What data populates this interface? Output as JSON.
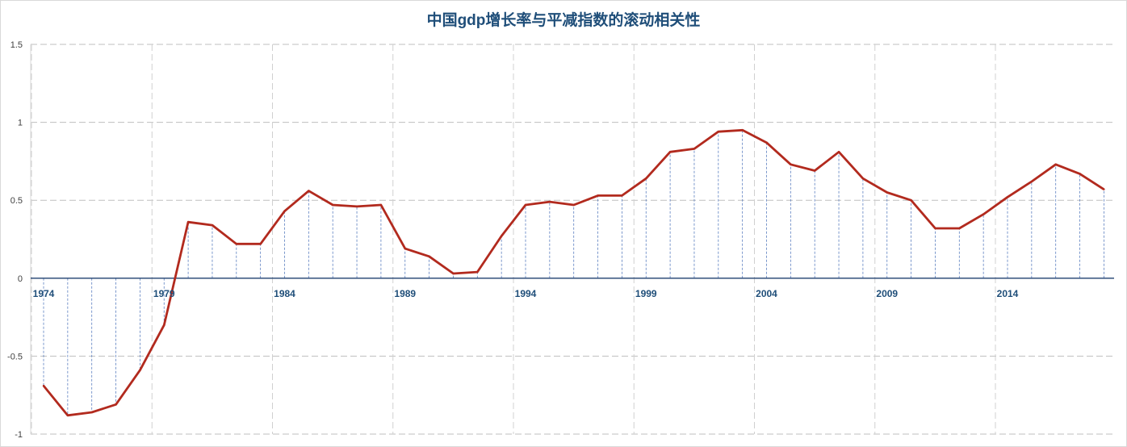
{
  "chart_data": {
    "type": "line",
    "title": "中国gdp增长率与平减指数的滚动相关性",
    "xlabel": "",
    "ylabel": "",
    "x": [
      1974,
      1975,
      1976,
      1977,
      1978,
      1979,
      1980,
      1981,
      1982,
      1983,
      1984,
      1985,
      1986,
      1987,
      1988,
      1989,
      1990,
      1991,
      1992,
      1993,
      1994,
      1995,
      1996,
      1997,
      1998,
      1999,
      2000,
      2001,
      2002,
      2003,
      2004,
      2005,
      2006,
      2007,
      2008,
      2009,
      2010,
      2011,
      2012,
      2013,
      2014,
      2015,
      2016,
      2017,
      2018
    ],
    "series": [
      {
        "name": "",
        "color": "#b22a1e",
        "values": [
          -0.69,
          -0.88,
          -0.86,
          -0.81,
          -0.59,
          -0.3,
          0.36,
          0.34,
          0.22,
          0.22,
          0.43,
          0.56,
          0.47,
          0.46,
          0.47,
          0.19,
          0.14,
          0.03,
          0.04,
          0.27,
          0.47,
          0.49,
          0.47,
          0.53,
          0.53,
          0.64,
          0.81,
          0.83,
          0.94,
          0.95,
          0.87,
          0.73,
          0.69,
          0.81,
          0.64,
          0.55,
          0.5,
          0.32,
          0.32,
          0.41,
          0.52,
          0.62,
          0.73,
          0.67,
          0.57
        ]
      }
    ],
    "ylim": [
      -1,
      1.5
    ],
    "yticks": [
      1.5,
      1,
      0.5,
      0,
      -0.5,
      -1
    ],
    "ytick_labels": [
      "1.5",
      "1",
      "0.5",
      "0",
      "-0.5",
      "-1"
    ],
    "xtick_labels": [
      "1974",
      "1979",
      "1984",
      "1989",
      "1994",
      "1999",
      "2004",
      "2009",
      "2014"
    ],
    "grid": true,
    "drop_lines": true,
    "legend": "none"
  }
}
